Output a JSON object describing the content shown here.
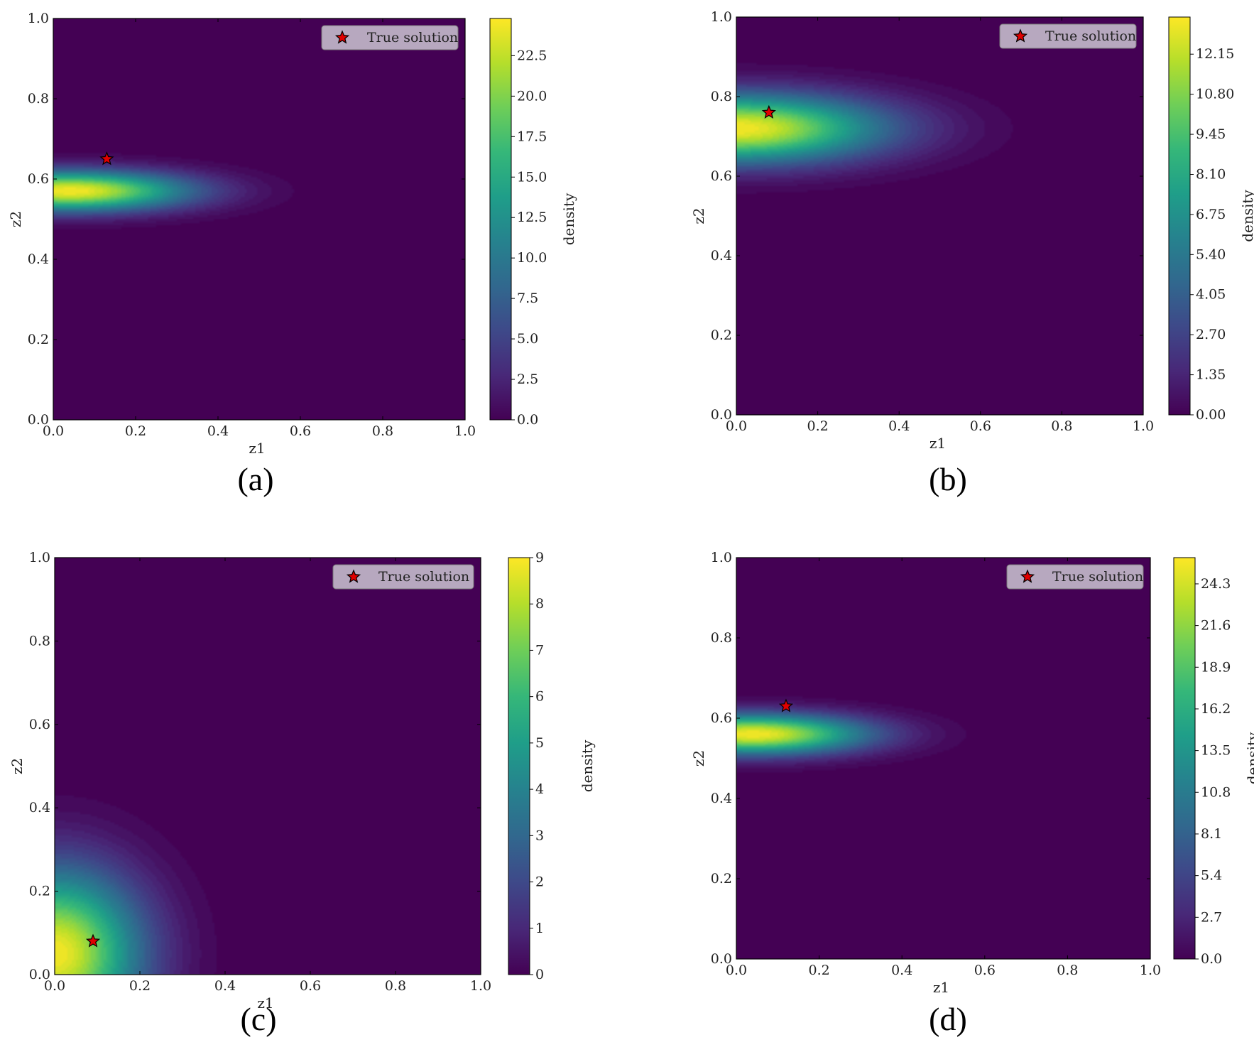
{
  "colors": {
    "viridis": [
      "#440154",
      "#482878",
      "#3e4989",
      "#31688e",
      "#26828e",
      "#1f9e89",
      "#35b779",
      "#6ece58",
      "#b5de2b",
      "#fde725"
    ],
    "marker_fill": "#e00000",
    "marker_edge": "#000000",
    "legend_bg": "#b7a8bf"
  },
  "chart_data": [
    {
      "panel": "(a)",
      "type": "heatmap",
      "xlabel": "z1",
      "ylabel": "z2",
      "xlim": [
        0,
        1
      ],
      "ylim": [
        0,
        1
      ],
      "xticks": [
        "0.0",
        "0.2",
        "0.4",
        "0.6",
        "0.8",
        "1.0"
      ],
      "yticks": [
        "0.0",
        "0.2",
        "0.4",
        "0.6",
        "0.8",
        "1.0"
      ],
      "colorbar_label": "density",
      "colorbar_ticks": [
        "0.0",
        "2.5",
        "5.0",
        "7.5",
        "10.0",
        "12.5",
        "15.0",
        "17.5",
        "20.0",
        "22.5"
      ],
      "colorbar_max": 24.8,
      "density_peak": {
        "z1": 0.04,
        "z2": 0.57,
        "value": 24.8,
        "spread_z1": 0.2,
        "spread_z2": 0.035
      },
      "true_solution": {
        "z1": 0.13,
        "z2": 0.65
      },
      "legend": "True solution",
      "grid": false,
      "legend_position": "top-right"
    },
    {
      "panel": "(b)",
      "type": "heatmap",
      "xlabel": "z1",
      "ylabel": "z2",
      "xlim": [
        0,
        1
      ],
      "ylim": [
        0,
        1
      ],
      "xticks": [
        "0.0",
        "0.2",
        "0.4",
        "0.6",
        "0.8",
        "1.0"
      ],
      "yticks": [
        "0.0",
        "0.2",
        "0.4",
        "0.6",
        "0.8",
        "1.0"
      ],
      "colorbar_label": "density",
      "colorbar_ticks": [
        "0.00",
        "1.35",
        "2.70",
        "4.05",
        "5.40",
        "6.75",
        "8.10",
        "9.45",
        "10.80",
        "12.15"
      ],
      "colorbar_max": 13.4,
      "density_peak": {
        "z1": 0.0,
        "z2": 0.72,
        "value": 13.4,
        "spread_z1": 0.25,
        "spread_z2": 0.06
      },
      "true_solution": {
        "z1": 0.08,
        "z2": 0.76
      },
      "legend": "True solution",
      "grid": false,
      "legend_position": "top-right"
    },
    {
      "panel": "(c)",
      "type": "heatmap",
      "xlabel": "z1",
      "ylabel": "z2",
      "xlim": [
        0,
        1
      ],
      "ylim": [
        0,
        1
      ],
      "xticks": [
        "0.0",
        "0.2",
        "0.4",
        "0.6",
        "0.8",
        "1.0"
      ],
      "yticks": [
        "0.0",
        "0.2",
        "0.4",
        "0.6",
        "0.8",
        "1.0"
      ],
      "colorbar_label": "density",
      "colorbar_ticks": [
        "0",
        "1",
        "2",
        "3",
        "4",
        "5",
        "6",
        "7",
        "8",
        "9"
      ],
      "colorbar_max": 9,
      "density_peak": {
        "z1": 0.0,
        "z2": 0.05,
        "value": 9,
        "spread_z1": 0.14,
        "spread_z2": 0.14
      },
      "true_solution": {
        "z1": 0.09,
        "z2": 0.08
      },
      "legend": "True solution",
      "grid": false,
      "legend_position": "top-right"
    },
    {
      "panel": "(d)",
      "type": "heatmap",
      "xlabel": "z1",
      "ylabel": "z2",
      "xlim": [
        0,
        1
      ],
      "ylim": [
        0,
        1
      ],
      "xticks": [
        "0.0",
        "0.2",
        "0.4",
        "0.6",
        "0.8",
        "1.0"
      ],
      "yticks": [
        "0.0",
        "0.2",
        "0.4",
        "0.6",
        "0.8",
        "1.0"
      ],
      "colorbar_label": "density",
      "colorbar_ticks": [
        "0.0",
        "2.7",
        "5.4",
        "8.1",
        "10.8",
        "13.5",
        "16.2",
        "18.9",
        "21.6",
        "24.3"
      ],
      "colorbar_max": 26.0,
      "density_peak": {
        "z1": 0.04,
        "z2": 0.56,
        "value": 26.0,
        "spread_z1": 0.19,
        "spread_z2": 0.035
      },
      "true_solution": {
        "z1": 0.12,
        "z2": 0.63
      },
      "legend": "True solution",
      "grid": false,
      "legend_position": "top-right"
    }
  ]
}
